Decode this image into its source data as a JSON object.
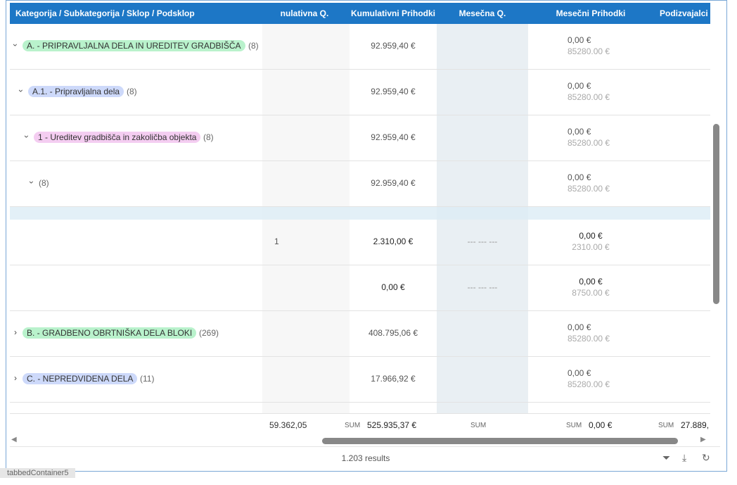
{
  "header": {
    "columns": [
      "Kategorija / Subkategorija / Sklop / Podsklop",
      "nulativna Q.",
      "Kumulativni Prihodki",
      "Mesečna Q.",
      "Mesečni Prihodki",
      "Podizvajalci"
    ]
  },
  "rows": [
    {
      "level": 0,
      "expanded": true,
      "tag": "A. - PRIPRAVLJALNA DELA IN UREDITEV GRADBIŠČA",
      "tag_color": "#b9f2cc",
      "count": "(8)",
      "cum_rev": "92.959,40 €",
      "month_rev": "0,00 €",
      "month_rev_plan": "85280.00 €"
    },
    {
      "level": 1,
      "expanded": true,
      "tag": "A.1. - Pripravljalna dela",
      "tag_color": "#cdd9fa",
      "count": "(8)",
      "cum_rev": "92.959,40 €",
      "month_rev": "0,00 €",
      "month_rev_plan": "85280.00 €"
    },
    {
      "level": 2,
      "expanded": true,
      "tag": "1 - Ureditev gradbišča in zakoličba objekta",
      "tag_color": "#f4cdf1",
      "count": "(8)",
      "cum_rev": "92.959,40 €",
      "month_rev": "0,00 €",
      "month_rev_plan": "85280.00 €"
    },
    {
      "level": 3,
      "expanded": true,
      "count": "(8)",
      "cum_rev": "92.959,40 €",
      "month_rev": "0,00 €",
      "month_rev_plan": "85280.00 €"
    },
    {
      "spacer": true
    },
    {
      "leaf": true,
      "cum_q": "1",
      "cum_rev": "2.310,00 €",
      "month_q": "--- --- ---",
      "month_rev": "0,00 €",
      "month_rev_plan": "2310.00 €"
    },
    {
      "leaf": true,
      "cum_rev": "0,00 €",
      "month_q": "--- --- ---",
      "month_rev": "0,00 €",
      "month_rev_plan": "8750.00 €"
    },
    {
      "level": 0,
      "expanded": false,
      "tag": "B. - GRADBENO OBRTNIŠKA DELA BLOKI",
      "tag_color": "#b9f2cc",
      "count": "(269)",
      "cum_rev": "408.795,06 €",
      "month_rev": "0,00 €",
      "month_rev_plan": "85280.00 €"
    },
    {
      "level": 0,
      "expanded": false,
      "tag": "C. - NEPREDVIDENA DELA",
      "tag_color": "#cdd9fa",
      "count": "(11)",
      "cum_rev": "17.966,92 €",
      "month_rev": "0,00 €",
      "month_rev_plan": "85280.00 €"
    }
  ],
  "footer": {
    "cum_q": "59.362,05",
    "sum_label": "SUM",
    "cum_rev": "525.935,37 €",
    "month_rev": "0,00 €",
    "subcontractors": "27.889,"
  },
  "results": "1.203 results",
  "container_label": "tabbedContainer5"
}
